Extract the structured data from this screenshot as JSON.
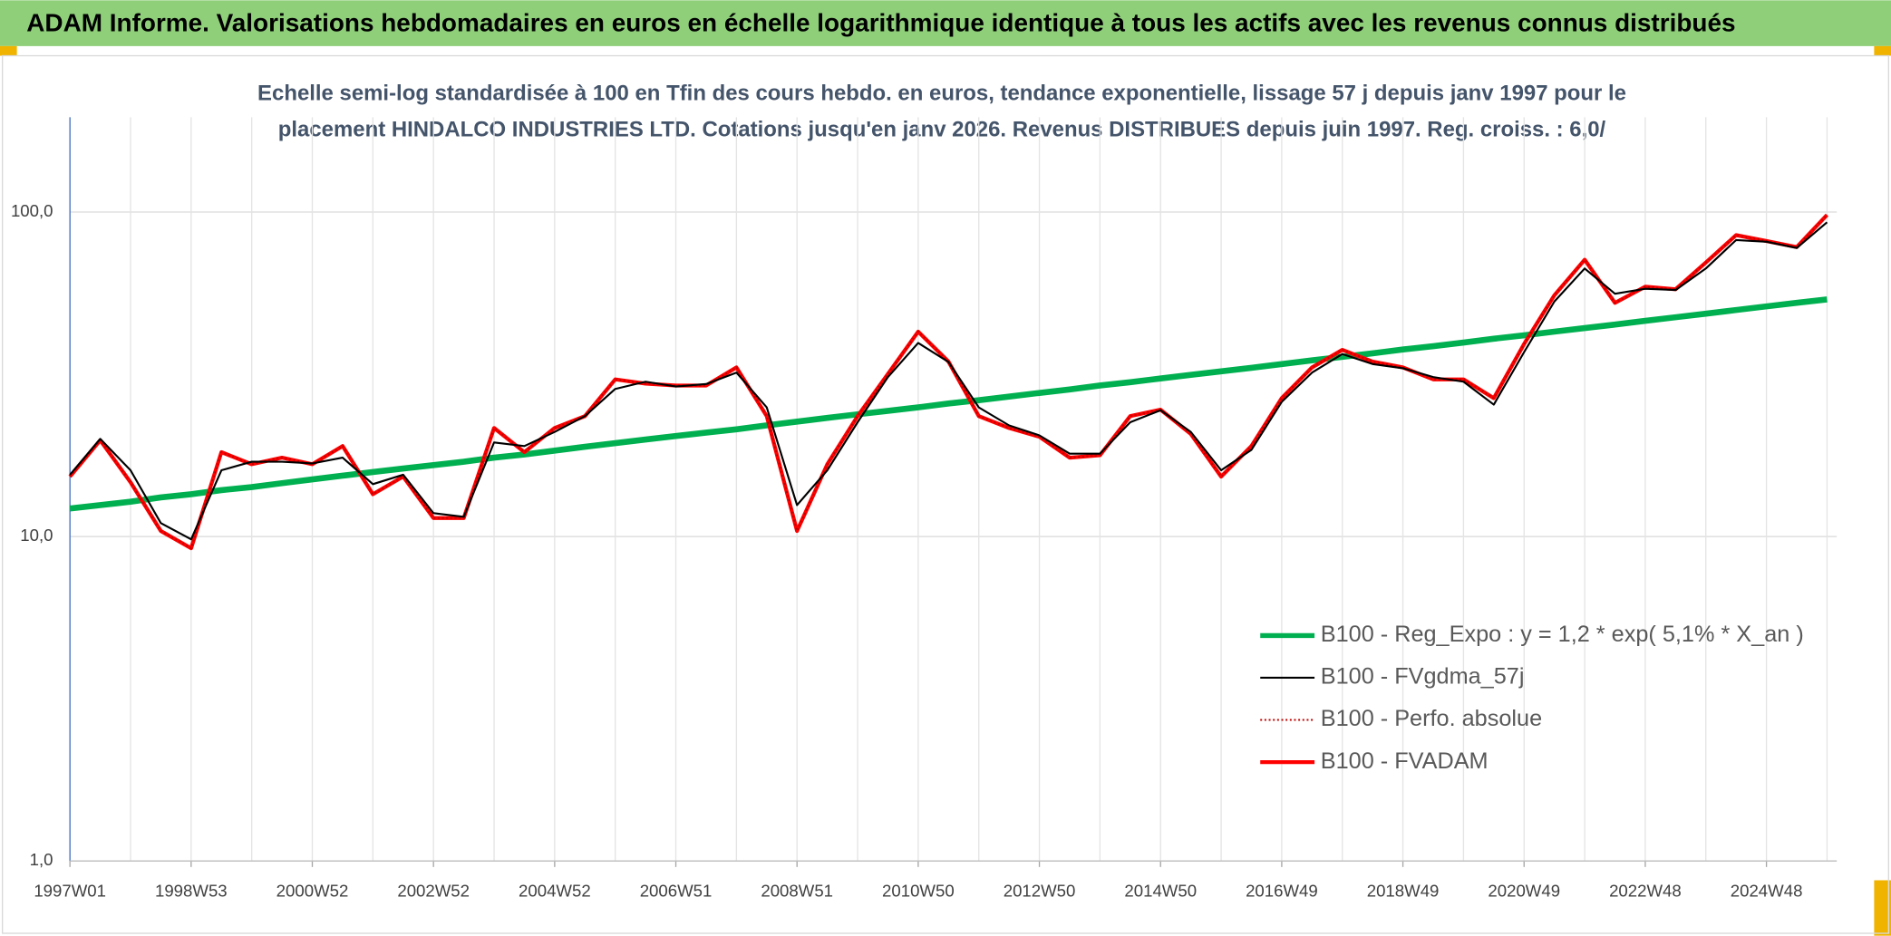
{
  "chart_data": {
    "type": "line",
    "title": "ADAM Informe. Valorisations hebdomadaires en euros en échelle logarithmique identique à tous les actifs avec les revenus connus distribués",
    "subtitle": [
      "Echelle semi-log standardisée à 100 en Tfin des cours hebdo. en euros, tendance exponentielle, lissage 57 j depuis janv 1997 pour le",
      "placement HINDALCO INDUSTRIES LTD. Cotations jusqu'en janv 2026. Revenus DISTRIBUES depuis juin 1997. Reg. croiss. : 6,0/"
    ],
    "x": [
      "1997W01",
      null,
      null,
      null,
      "1998W53",
      null,
      null,
      null,
      "2000W52",
      null,
      null,
      null,
      "2002W52",
      null,
      null,
      null,
      "2004W52",
      null,
      null,
      null,
      "2006W51",
      null,
      null,
      null,
      "2008W51",
      null,
      null,
      null,
      "2010W50",
      null,
      null,
      null,
      "2012W50",
      null,
      null,
      null,
      "2014W50",
      null,
      null,
      null,
      "2016W49",
      null,
      null,
      null,
      "2018W49",
      null,
      null,
      null,
      "2020W49",
      null,
      null,
      null,
      "2022W48",
      null,
      null,
      null,
      "2024W48",
      null,
      null
    ],
    "log_scale": true,
    "ylim": [
      1,
      196
    ],
    "yticks": [
      {
        "value": 1,
        "label": "1,0"
      },
      {
        "value": 10,
        "label": "10,0"
      },
      {
        "value": 100,
        "label": "100,0"
      }
    ],
    "grid": true,
    "legend": "right",
    "series": [
      {
        "name": "B100 - Reg_Expo : y = 1,2 * exp( 5,1% *  X_an )",
        "color": "#00b050",
        "style": "thick",
        "values": [
          12.2,
          12.5,
          12.8,
          13.2,
          13.5,
          13.9,
          14.2,
          14.6,
          15.0,
          15.4,
          15.8,
          16.2,
          16.6,
          17.0,
          17.5,
          17.9,
          18.4,
          18.9,
          19.4,
          19.9,
          20.4,
          20.9,
          21.4,
          22.0,
          22.6,
          23.2,
          23.8,
          24.4,
          25.0,
          25.7,
          26.3,
          27.0,
          27.7,
          28.4,
          29.2,
          29.9,
          30.7,
          31.5,
          32.3,
          33.1,
          34.0,
          34.9,
          35.8,
          36.7,
          37.7,
          38.6,
          39.6,
          40.7,
          41.7,
          42.8,
          43.9,
          45.0,
          46.2,
          47.4,
          48.6,
          49.9,
          51.2,
          52.5,
          53.8
        ]
      },
      {
        "name": "B100 - FVgdma_57j",
        "color": "#000000",
        "style": "thin",
        "values": [
          15.5,
          20,
          16,
          11,
          9.8,
          16,
          17,
          17,
          16.8,
          17.5,
          14.5,
          15.5,
          11.8,
          11.5,
          19.5,
          19,
          21,
          23.5,
          28.5,
          30,
          29,
          29.5,
          32,
          25,
          12.5,
          16,
          22.5,
          31,
          39.5,
          34.5,
          25,
          22,
          20.5,
          18,
          18,
          22.5,
          24.5,
          21,
          16,
          18.5,
          26,
          32,
          36.5,
          34,
          33,
          31,
          30,
          25.5,
          37,
          53,
          67,
          56,
          58,
          57.5,
          67,
          82,
          81,
          77.5,
          93
        ]
      },
      {
        "name": "B100 - Perfo. absolue",
        "color": "#c00000",
        "style": "dotted",
        "values": [
          15.3,
          19.8,
          14.7,
          10.4,
          9.2,
          18.2,
          16.7,
          17.5,
          16.7,
          19,
          13.5,
          15.3,
          11.4,
          11.4,
          21.6,
          18.2,
          21.6,
          23.5,
          30.5,
          29.6,
          29.2,
          29.2,
          33.2,
          23.5,
          10.4,
          16.7,
          23.5,
          31.7,
          42.8,
          34.6,
          23.5,
          21.6,
          20.3,
          17.5,
          17.8,
          23.5,
          24.6,
          20.7,
          15.3,
          19,
          26.7,
          33.2,
          37.6,
          34.6,
          33.2,
          30.5,
          30.5,
          26.7,
          39.2,
          55.4,
          71.3,
          52.5,
          58.9,
          57.8,
          69.9,
          84.9,
          81.4,
          78,
          98
        ]
      },
      {
        "name": "B100 - FVADAM",
        "color": "#ff0000",
        "style": "bold",
        "values": [
          15.3,
          19.8,
          14.7,
          10.4,
          9.2,
          18.2,
          16.7,
          17.5,
          16.7,
          19,
          13.5,
          15.3,
          11.4,
          11.4,
          21.6,
          18.2,
          21.6,
          23.5,
          30.5,
          29.6,
          29.2,
          29.2,
          33.2,
          23.5,
          10.4,
          16.7,
          23.5,
          31.7,
          42.8,
          34.6,
          23.5,
          21.6,
          20.3,
          17.5,
          17.8,
          23.5,
          24.6,
          20.7,
          15.3,
          19,
          26.7,
          33.2,
          37.6,
          34.6,
          33.2,
          30.5,
          30.5,
          26.7,
          39.2,
          55.4,
          71.3,
          52.5,
          58.9,
          57.8,
          69.9,
          84.9,
          81.4,
          78,
          98
        ]
      }
    ]
  }
}
